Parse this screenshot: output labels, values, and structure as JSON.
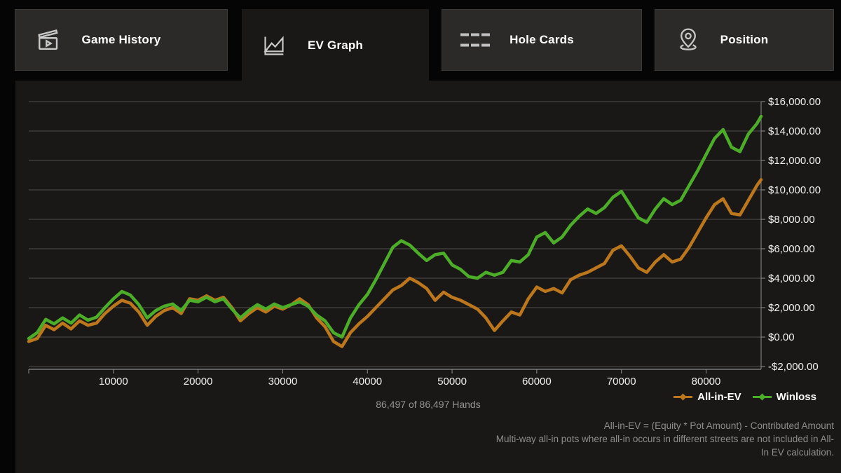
{
  "tabs": [
    {
      "label": "Game History",
      "active": false
    },
    {
      "label": "EV Graph",
      "active": true
    },
    {
      "label": "Hole Cards",
      "active": false
    },
    {
      "label": "Position",
      "active": false
    }
  ],
  "status_text": "86,497 of 86,497 Hands",
  "footnote_lines": [
    "All-in-EV = (Equity * Pot Amount) - Contributed Amount",
    "Multi-way all-in pots where all-in occurs in different streets are not included in All-",
    "In EV calculation."
  ],
  "chart_data": {
    "type": "line",
    "title": "",
    "xlabel": "",
    "ylabel": "",
    "xlim": [
      0,
      86497
    ],
    "ylim": [
      -2000,
      16000
    ],
    "y_tick_step": 2000,
    "x_ticks": [
      0,
      10000,
      20000,
      30000,
      40000,
      50000,
      60000,
      70000,
      80000
    ],
    "grid": true,
    "legend_position": "bottom-right",
    "colors": {
      "grid": "#4e4e4e",
      "axis": "#8f8f8f",
      "tick_label": "#f1f1f1"
    },
    "x": [
      0,
      1000,
      2000,
      3000,
      4000,
      5000,
      6000,
      7000,
      8000,
      9000,
      10000,
      11000,
      12000,
      13000,
      14000,
      15000,
      16000,
      17000,
      18000,
      19000,
      20000,
      21000,
      22000,
      23000,
      24000,
      25000,
      26000,
      27000,
      28000,
      29000,
      30000,
      31000,
      32000,
      33000,
      34000,
      35000,
      36000,
      37000,
      38000,
      39000,
      40000,
      41000,
      42000,
      43000,
      44000,
      45000,
      46000,
      47000,
      48000,
      49000,
      50000,
      51000,
      52000,
      53000,
      54000,
      55000,
      56000,
      57000,
      58000,
      59000,
      60000,
      61000,
      62000,
      63000,
      64000,
      65000,
      66000,
      67000,
      68000,
      69000,
      70000,
      71000,
      72000,
      73000,
      74000,
      75000,
      76000,
      77000,
      78000,
      79000,
      80000,
      81000,
      82000,
      83000,
      84000,
      85000,
      86000,
      86497
    ],
    "series": [
      {
        "name": "All-in-EV",
        "color": "#bc771d",
        "values": [
          -300,
          -100,
          800,
          500,
          950,
          550,
          1100,
          800,
          950,
          1600,
          2100,
          2500,
          2300,
          1700,
          800,
          1400,
          1800,
          2000,
          1600,
          2600,
          2500,
          2800,
          2500,
          2700,
          2000,
          1100,
          1600,
          2000,
          1700,
          2100,
          1900,
          2200,
          2600,
          2200,
          1300,
          700,
          -300,
          -650,
          300,
          900,
          1400,
          2000,
          2600,
          3200,
          3500,
          4000,
          3700,
          3300,
          2500,
          3050,
          2700,
          2500,
          2200,
          1900,
          1300,
          450,
          1100,
          1700,
          1500,
          2600,
          3400,
          3100,
          3300,
          3000,
          3900,
          4200,
          4400,
          4700,
          5000,
          5900,
          6200,
          5500,
          4700,
          4400,
          5100,
          5600,
          5100,
          5300,
          6100,
          7100,
          8100,
          9000,
          9400,
          8400,
          8300,
          9300,
          10300,
          10700
        ]
      },
      {
        "name": "Winloss",
        "color": "#4cae28",
        "values": [
          -100,
          300,
          1200,
          900,
          1300,
          950,
          1500,
          1150,
          1350,
          2000,
          2600,
          3100,
          2850,
          2200,
          1300,
          1800,
          2100,
          2250,
          1800,
          2500,
          2400,
          2700,
          2400,
          2600,
          1900,
          1300,
          1800,
          2200,
          1900,
          2250,
          2000,
          2200,
          2400,
          2100,
          1500,
          1100,
          300,
          0,
          1300,
          2200,
          2900,
          3900,
          5000,
          6100,
          6550,
          6250,
          5700,
          5200,
          5600,
          5700,
          4900,
          4600,
          4100,
          4000,
          4400,
          4200,
          4400,
          5200,
          5100,
          5600,
          6800,
          7100,
          6400,
          6800,
          7600,
          8200,
          8700,
          8400,
          8800,
          9500,
          9900,
          9000,
          8100,
          7800,
          8700,
          9400,
          9000,
          9300,
          10300,
          11300,
          12400,
          13500,
          14100,
          12900,
          12600,
          13800,
          14500,
          15000
        ]
      }
    ]
  }
}
